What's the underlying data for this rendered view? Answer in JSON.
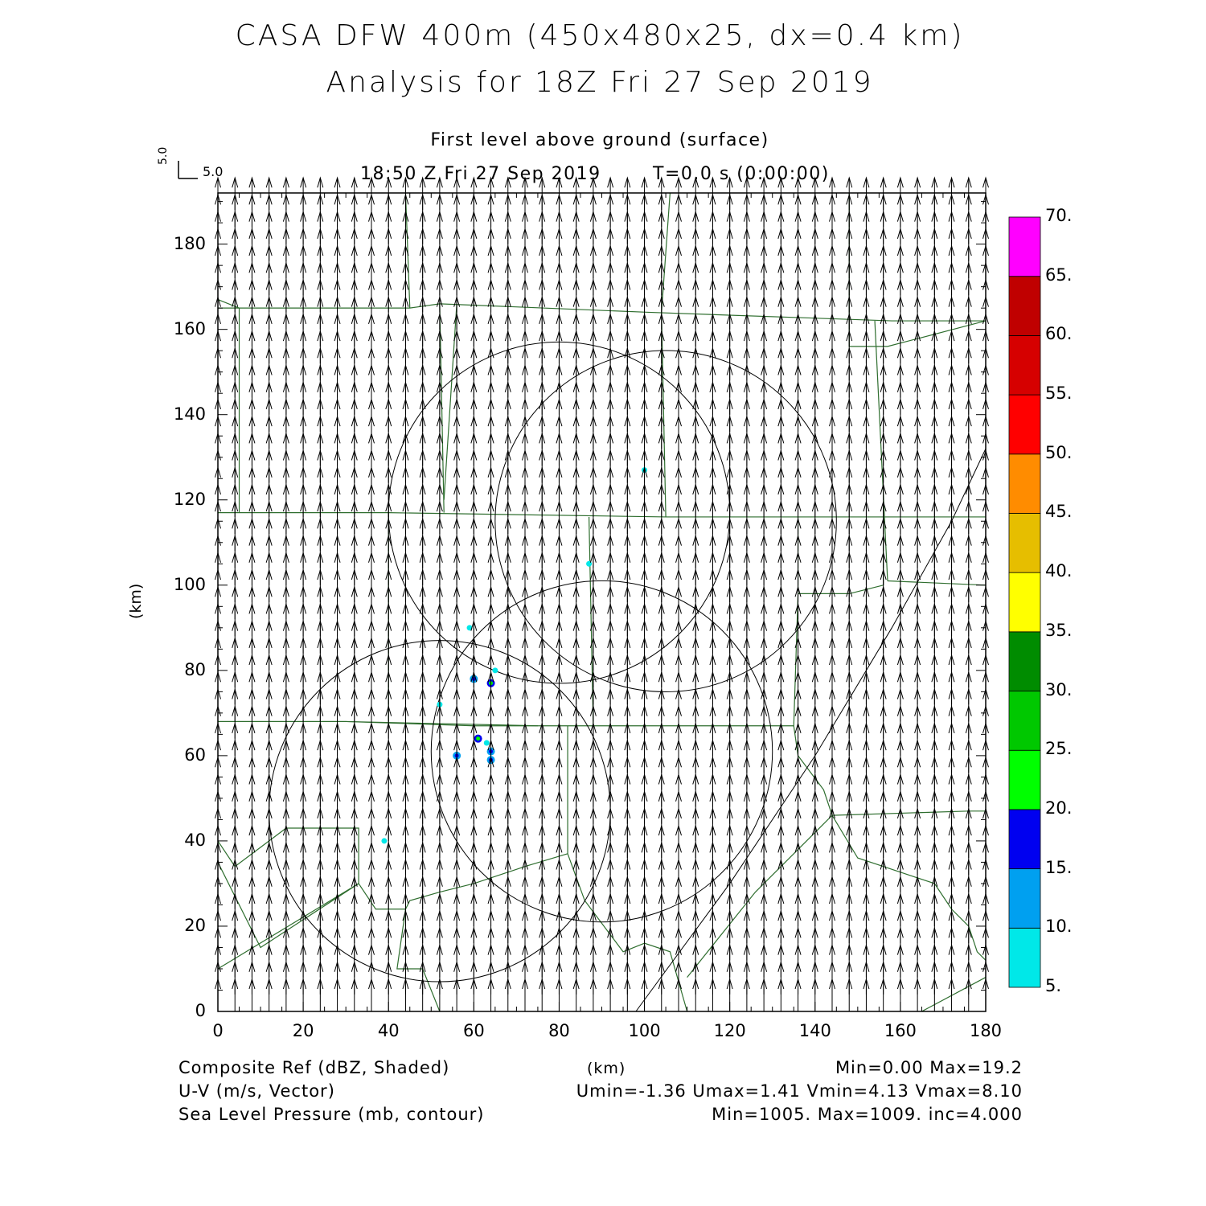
{
  "titles": {
    "line1": "CASA DFW 400m (450x480x25, dx=0.4 km)",
    "line2": "Analysis for 18Z Fri 27 Sep 2019",
    "level": "First level above ground (surface)",
    "time": "18:50 Z Fri 27 Sep 2019",
    "tstep": "T=0.0 s (0:00:00)"
  },
  "vector_key": {
    "u_label": "5.0",
    "v_label": "5.0"
  },
  "axes": {
    "xlabel": "(km)",
    "ylabel": "(km)",
    "xlim": [
      0,
      180
    ],
    "ylim": [
      0,
      192
    ],
    "xticks": [
      "0",
      "20",
      "40",
      "60",
      "80",
      "100",
      "120",
      "140",
      "160",
      "180"
    ],
    "yticks": [
      "0",
      "20",
      "40",
      "60",
      "80",
      "100",
      "120",
      "140",
      "160",
      "180"
    ]
  },
  "colorbar": {
    "labels": [
      "5.",
      "10.",
      "15.",
      "20.",
      "25.",
      "30.",
      "35.",
      "40.",
      "45.",
      "50.",
      "55.",
      "60.",
      "65.",
      "70."
    ],
    "colors": [
      "#00e8e8",
      "#00a0f0",
      "#0000f0",
      "#00ff00",
      "#00c800",
      "#008c00",
      "#ffff00",
      "#e6be00",
      "#ff8c00",
      "#ff0000",
      "#d60000",
      "#c00000",
      "#ff00ff"
    ]
  },
  "footer": {
    "left": [
      "Composite Ref (dBZ, Shaded)",
      "U-V (m/s, Vector)",
      "Sea Level Pressure (mb, contour)"
    ],
    "center": "(km)",
    "right": [
      "Min=0.00  Max=19.2",
      "Umin=-1.36  Umax=1.41  Vmin=4.13  Vmax=8.10",
      "Min=1005.  Max=1009.  inc=4.000"
    ]
  },
  "colors": {
    "boundary": "#2f6e2f",
    "frame": "#000000"
  },
  "chart_data": {
    "type": "map",
    "field": "Composite reflectivity with wind vectors",
    "vectors": {
      "dx_km": 4.0,
      "dy_km": 4.0,
      "u_ms": 0.0,
      "v_ms": 6.5
    },
    "range_rings": [
      {
        "x": 80,
        "y": 117,
        "r": 40
      },
      {
        "x": 105,
        "y": 115,
        "r": 40
      },
      {
        "x": 90,
        "y": 61,
        "r": 40
      },
      {
        "x": 52,
        "y": 47,
        "r": 40
      }
    ],
    "echoes": [
      {
        "x": 100,
        "y": 127,
        "dbz": 7
      },
      {
        "x": 87,
        "y": 105,
        "dbz": 6
      },
      {
        "x": 59,
        "y": 90,
        "dbz": 6
      },
      {
        "x": 65,
        "y": 80,
        "dbz": 8
      },
      {
        "x": 60,
        "y": 78,
        "dbz": 12
      },
      {
        "x": 64,
        "y": 77,
        "dbz": 17
      },
      {
        "x": 52,
        "y": 72,
        "dbz": 7
      },
      {
        "x": 61,
        "y": 64,
        "dbz": 19
      },
      {
        "x": 63,
        "y": 63,
        "dbz": 8
      },
      {
        "x": 64,
        "y": 61,
        "dbz": 12
      },
      {
        "x": 56,
        "y": 60,
        "dbz": 14
      },
      {
        "x": 64,
        "y": 59,
        "dbz": 11
      },
      {
        "x": 39,
        "y": 40,
        "dbz": 6
      }
    ],
    "county_lines": [
      [
        [
          0,
          165
        ],
        [
          45,
          165
        ],
        [
          52,
          166
        ],
        [
          101,
          164
        ],
        [
          158,
          162
        ],
        [
          180,
          162
        ]
      ],
      [
        [
          0,
          117
        ],
        [
          40,
          117
        ],
        [
          105,
          116
        ],
        [
          180,
          116
        ]
      ],
      [
        [
          0,
          68
        ],
        [
          30,
          68
        ],
        [
          75,
          67
        ],
        [
          135,
          67
        ]
      ],
      [
        [
          0,
          68
        ],
        [
          30,
          68
        ],
        [
          60,
          67
        ],
        [
          75,
          67
        ]
      ],
      [
        [
          0,
          167
        ],
        [
          5,
          165
        ],
        [
          5,
          117
        ]
      ],
      [
        [
          44,
          192
        ],
        [
          45,
          165
        ]
      ],
      [
        [
          52,
          166
        ],
        [
          53,
          117
        ]
      ],
      [
        [
          56,
          166
        ],
        [
          53,
          120
        ]
      ],
      [
        [
          106,
          192
        ],
        [
          104,
          164
        ],
        [
          105,
          116
        ]
      ],
      [
        [
          40,
          117
        ],
        [
          40,
          67
        ]
      ],
      [
        [
          87,
          116
        ],
        [
          88,
          67
        ]
      ],
      [
        [
          136,
          116
        ],
        [
          136,
          98
        ],
        [
          148,
          98
        ],
        [
          156,
          100
        ],
        [
          156,
          116
        ]
      ],
      [
        [
          136,
          98
        ],
        [
          135,
          67
        ],
        [
          136,
          60
        ],
        [
          142,
          52
        ],
        [
          144,
          46
        ],
        [
          176,
          47
        ],
        [
          180,
          47
        ]
      ],
      [
        [
          144,
          46
        ],
        [
          150,
          36
        ],
        [
          156,
          34
        ],
        [
          168,
          30
        ],
        [
          172,
          24
        ],
        [
          176,
          20
        ],
        [
          178,
          14
        ],
        [
          180,
          12
        ]
      ],
      [
        [
          157,
          101
        ],
        [
          180,
          100
        ]
      ],
      [
        [
          148,
          192
        ],
        [
          148,
          156
        ],
        [
          157,
          156
        ],
        [
          180,
          162
        ]
      ],
      [
        [
          154,
          162
        ],
        [
          157,
          101
        ]
      ],
      [
        [
          0,
          40
        ],
        [
          4,
          34
        ],
        [
          16,
          43
        ],
        [
          33,
          43
        ],
        [
          33,
          30
        ],
        [
          37,
          24
        ],
        [
          44,
          24
        ],
        [
          45,
          26
        ],
        [
          52,
          28
        ],
        [
          60,
          30
        ],
        [
          72,
          34
        ],
        [
          82,
          37
        ]
      ],
      [
        [
          82,
          37
        ],
        [
          82,
          67
        ]
      ],
      [
        [
          0,
          10
        ],
        [
          33,
          30
        ]
      ],
      [
        [
          82,
          37
        ],
        [
          86,
          26
        ],
        [
          95,
          14
        ],
        [
          100,
          16
        ],
        [
          106,
          14
        ],
        [
          110,
          0
        ]
      ],
      [
        [
          44,
          24
        ],
        [
          42,
          10
        ],
        [
          48,
          10
        ],
        [
          52,
          0
        ]
      ],
      [
        [
          110,
          8
        ],
        [
          126,
          28
        ],
        [
          144,
          46
        ]
      ],
      [
        [
          0,
          35
        ],
        [
          10,
          15
        ],
        [
          33,
          30
        ]
      ],
      [
        [
          165,
          0
        ],
        [
          180,
          8
        ]
      ]
    ],
    "highway": [
      [
        98,
        0
      ],
      [
        120,
        30
      ],
      [
        140,
        60
      ],
      [
        158,
        90
      ],
      [
        172,
        115
      ],
      [
        180,
        132
      ]
    ]
  }
}
